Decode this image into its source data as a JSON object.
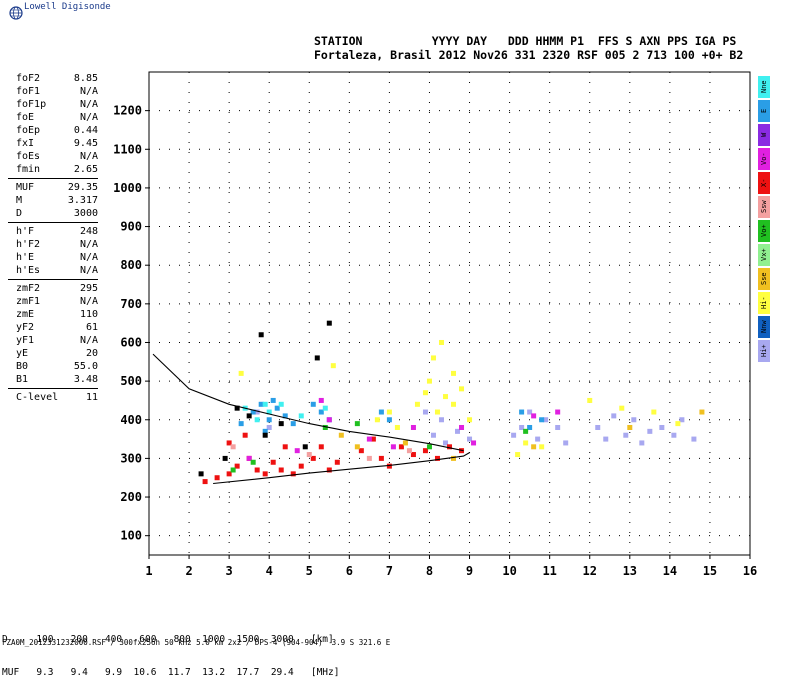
{
  "header": {
    "logo_text": "Lowell Digisonde",
    "station_labels": "STATION          YYYY DAY   DDD HHMM P1  FFS S AXN PPS IGA PS",
    "station_values": "Fortaleza, Brasil 2012 Nov26 331 2320 RSF 005 2 713 100 +0+ B2"
  },
  "params": [
    {
      "name": "foF2",
      "value": "8.85"
    },
    {
      "name": "foF1",
      "value": "N/A"
    },
    {
      "name": "foF1p",
      "value": "N/A"
    },
    {
      "name": "foE",
      "value": "N/A"
    },
    {
      "name": "foEp",
      "value": "0.44"
    },
    {
      "name": "fxI",
      "value": "9.45"
    },
    {
      "name": "foEs",
      "value": "N/A"
    },
    {
      "name": "fmin",
      "value": "2.65"
    },
    {
      "sep": true
    },
    {
      "name": "MUF",
      "value": "29.35"
    },
    {
      "name": "M",
      "value": "3.317"
    },
    {
      "name": "D",
      "value": "3000"
    },
    {
      "sep": true
    },
    {
      "name": "h'F",
      "value": "248"
    },
    {
      "name": "h'F2",
      "value": "N/A"
    },
    {
      "name": "h'E",
      "value": "N/A"
    },
    {
      "name": "h'Es",
      "value": "N/A"
    },
    {
      "sep": true
    },
    {
      "name": "zmF2",
      "value": "295"
    },
    {
      "name": "zmF1",
      "value": "N/A"
    },
    {
      "name": "zmE",
      "value": "110"
    },
    {
      "name": "yF2",
      "value": "61"
    },
    {
      "name": "yF1",
      "value": "N/A"
    },
    {
      "name": "yE",
      "value": "20"
    },
    {
      "name": "B0",
      "value": "55.0"
    },
    {
      "name": "B1",
      "value": "3.48"
    },
    {
      "sep": true
    },
    {
      "name": "C-level",
      "value": "11"
    }
  ],
  "legend": [
    {
      "label": "Nne",
      "color": "#40f0f0"
    },
    {
      "label": "E",
      "color": "#2a9ee6"
    },
    {
      "label": "W",
      "color": "#8a2be2"
    },
    {
      "label": "Vo-",
      "color": "#e020e0"
    },
    {
      "label": "X-",
      "color": "#ee1111"
    },
    {
      "label": "Ssw",
      "color": "#f4a0a0"
    },
    {
      "label": "Vo+",
      "color": "#20c020"
    },
    {
      "label": "Vx+",
      "color": "#90f090"
    },
    {
      "label": "Sse",
      "color": "#f0c020"
    },
    {
      "label": "Hi-",
      "color": "#ffff40"
    },
    {
      "label": "Nnw",
      "color": "#1060c0"
    },
    {
      "label": "Hi+",
      "color": "#a8a8f0"
    }
  ],
  "muf_table": {
    "d_row": "D     100   200   400   600   800  1000  1500  3000   [km]",
    "muf_row": "MUF   9.3   9.4   9.9  10.6  11.7  13.2  17.7  29.4   [MHz]"
  },
  "footer": "FZA0M_2012331232000.RSF / 300fx256h 50 kHz 5.0 km 2x2 / DPS-4 (904-904)  3.9 S 321.6 E",
  "chart_data": {
    "type": "scatter",
    "title": "",
    "xlabel": "",
    "ylabel": "",
    "xlim": [
      1,
      16
    ],
    "ylim": [
      50,
      1300
    ],
    "x_ticks": [
      1,
      2,
      3,
      4,
      5,
      6,
      7,
      8,
      9,
      10,
      11,
      12,
      13,
      14,
      15,
      16
    ],
    "y_ticks": [
      100,
      200,
      300,
      400,
      500,
      600,
      700,
      800,
      900,
      1000,
      1100,
      1200
    ],
    "grid": true,
    "series": [
      {
        "color": "#a8a8f0",
        "points": [
          [
            10.1,
            360
          ],
          [
            10.3,
            380
          ],
          [
            10.5,
            420
          ],
          [
            10.7,
            350
          ],
          [
            10.9,
            400
          ],
          [
            11.2,
            380
          ],
          [
            11.4,
            340
          ],
          [
            12.2,
            380
          ],
          [
            12.4,
            350
          ],
          [
            12.6,
            410
          ],
          [
            12.9,
            360
          ],
          [
            13.1,
            400
          ],
          [
            13.3,
            340
          ],
          [
            13.5,
            370
          ],
          [
            13.8,
            380
          ],
          [
            14.1,
            360
          ],
          [
            14.3,
            400
          ],
          [
            14.6,
            350
          ],
          [
            8.1,
            360
          ],
          [
            8.4,
            340
          ],
          [
            8.7,
            370
          ],
          [
            9.0,
            350
          ],
          [
            7.9,
            420
          ],
          [
            8.3,
            400
          ],
          [
            3.7,
            420
          ],
          [
            4.0,
            380
          ]
        ]
      },
      {
        "color": "#ffff40",
        "points": [
          [
            7.7,
            440
          ],
          [
            7.9,
            470
          ],
          [
            8.0,
            500
          ],
          [
            8.2,
            420
          ],
          [
            8.4,
            460
          ],
          [
            8.6,
            440
          ],
          [
            8.8,
            480
          ],
          [
            9.0,
            400
          ],
          [
            6.7,
            400
          ],
          [
            7.0,
            420
          ],
          [
            7.2,
            380
          ],
          [
            8.1,
            560
          ],
          [
            8.3,
            600
          ],
          [
            8.6,
            520
          ],
          [
            10.2,
            310
          ],
          [
            10.4,
            340
          ],
          [
            10.8,
            330
          ],
          [
            12.0,
            450
          ],
          [
            12.8,
            430
          ],
          [
            13.6,
            420
          ],
          [
            14.2,
            390
          ],
          [
            3.3,
            520
          ],
          [
            5.6,
            540
          ]
        ]
      },
      {
        "color": "#ee1111",
        "points": [
          [
            2.4,
            240
          ],
          [
            2.7,
            250
          ],
          [
            3.0,
            260
          ],
          [
            3.2,
            280
          ],
          [
            3.5,
            300
          ],
          [
            3.7,
            270
          ],
          [
            3.9,
            260
          ],
          [
            4.1,
            290
          ],
          [
            4.3,
            270
          ],
          [
            4.6,
            260
          ],
          [
            4.8,
            280
          ],
          [
            5.1,
            300
          ],
          [
            5.3,
            330
          ],
          [
            5.5,
            270
          ],
          [
            5.7,
            290
          ],
          [
            6.3,
            320
          ],
          [
            6.6,
            350
          ],
          [
            6.8,
            300
          ],
          [
            7.0,
            280
          ],
          [
            7.3,
            330
          ],
          [
            7.6,
            310
          ],
          [
            7.9,
            320
          ],
          [
            8.2,
            300
          ],
          [
            8.5,
            330
          ],
          [
            8.8,
            320
          ],
          [
            3.0,
            340
          ],
          [
            3.4,
            360
          ],
          [
            4.4,
            330
          ]
        ]
      },
      {
        "color": "#2a9ee6",
        "points": [
          [
            3.6,
            420
          ],
          [
            3.8,
            440
          ],
          [
            4.0,
            400
          ],
          [
            4.2,
            430
          ],
          [
            4.4,
            410
          ],
          [
            4.6,
            390
          ],
          [
            5.1,
            440
          ],
          [
            5.3,
            420
          ],
          [
            5.5,
            400
          ],
          [
            6.8,
            420
          ],
          [
            7.0,
            400
          ],
          [
            10.3,
            420
          ],
          [
            10.5,
            380
          ],
          [
            10.8,
            400
          ],
          [
            4.1,
            450
          ],
          [
            3.9,
            370
          ],
          [
            3.3,
            390
          ]
        ]
      },
      {
        "color": "#40f0f0",
        "points": [
          [
            3.4,
            430
          ],
          [
            3.7,
            400
          ],
          [
            4.0,
            420
          ],
          [
            4.3,
            440
          ],
          [
            4.8,
            410
          ],
          [
            3.9,
            440
          ],
          [
            5.4,
            430
          ]
        ]
      },
      {
        "color": "#e020e0",
        "points": [
          [
            5.3,
            450
          ],
          [
            5.5,
            400
          ],
          [
            6.5,
            350
          ],
          [
            7.1,
            330
          ],
          [
            7.6,
            380
          ],
          [
            8.8,
            380
          ],
          [
            9.1,
            340
          ],
          [
            10.6,
            410
          ],
          [
            11.2,
            420
          ],
          [
            3.5,
            300
          ],
          [
            4.7,
            320
          ]
        ]
      },
      {
        "color": "#20c020",
        "points": [
          [
            3.1,
            270
          ],
          [
            3.6,
            290
          ],
          [
            5.4,
            380
          ],
          [
            6.2,
            390
          ],
          [
            8.0,
            330
          ],
          [
            10.4,
            370
          ]
        ]
      },
      {
        "color": "#000000",
        "points": [
          [
            3.2,
            430
          ],
          [
            3.5,
            410
          ],
          [
            3.9,
            360
          ],
          [
            4.3,
            390
          ],
          [
            2.9,
            300
          ],
          [
            4.9,
            330
          ],
          [
            2.3,
            260
          ],
          [
            5.2,
            560
          ],
          [
            3.8,
            620
          ],
          [
            5.5,
            650
          ]
        ]
      },
      {
        "color": "#f0c020",
        "points": [
          [
            5.8,
            360
          ],
          [
            6.2,
            330
          ],
          [
            7.4,
            340
          ],
          [
            8.6,
            300
          ],
          [
            10.6,
            330
          ],
          [
            13.0,
            380
          ],
          [
            14.8,
            420
          ]
        ]
      },
      {
        "color": "#f4a0a0",
        "points": [
          [
            3.1,
            330
          ],
          [
            5.0,
            310
          ],
          [
            6.5,
            300
          ],
          [
            7.5,
            320
          ]
        ]
      }
    ],
    "profile_curve": [
      [
        1.1,
        570
      ],
      [
        2,
        480
      ],
      [
        3,
        440
      ],
      [
        4,
        415
      ],
      [
        5,
        390
      ],
      [
        6,
        370
      ],
      [
        7,
        355
      ],
      [
        8,
        338
      ],
      [
        8.85,
        320
      ]
    ],
    "trace_curve": [
      [
        2.6,
        235
      ],
      [
        4,
        250
      ],
      [
        5,
        262
      ],
      [
        6,
        272
      ],
      [
        7,
        282
      ],
      [
        8,
        294
      ],
      [
        8.85,
        306
      ],
      [
        9.0,
        315
      ]
    ]
  }
}
